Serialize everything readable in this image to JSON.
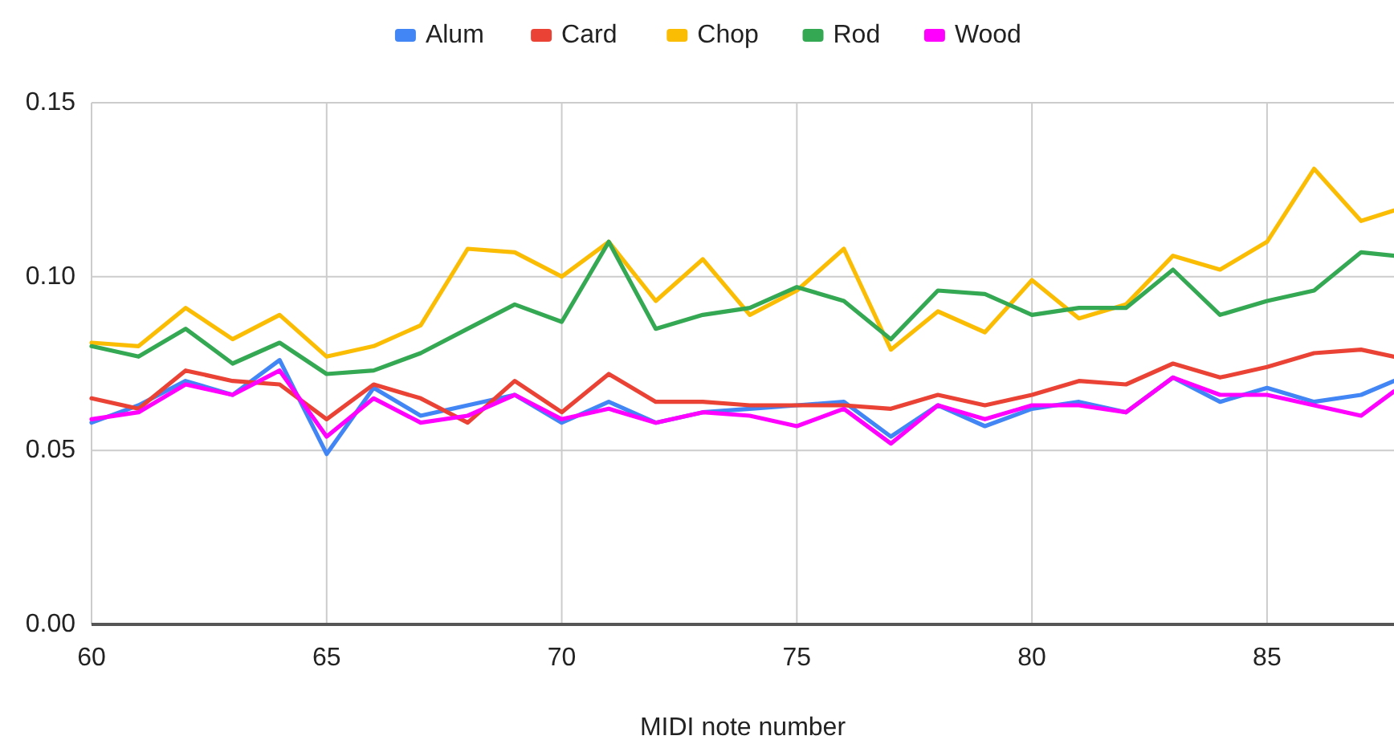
{
  "chart_data": {
    "type": "line",
    "xlabel": "MIDI note number",
    "x": [
      60,
      61,
      62,
      63,
      64,
      65,
      66,
      67,
      68,
      69,
      70,
      71,
      72,
      73,
      74,
      75,
      76,
      77,
      78,
      79,
      80,
      81,
      82,
      83,
      84,
      85,
      86,
      87,
      87.7
    ],
    "series": [
      {
        "name": "Alum",
        "color": "#4285f4",
        "values": [
          0.058,
          0.063,
          0.07,
          0.066,
          0.076,
          0.049,
          0.068,
          0.06,
          0.063,
          0.066,
          0.058,
          0.064,
          0.058,
          0.061,
          0.062,
          0.063,
          0.064,
          0.054,
          0.063,
          0.057,
          0.062,
          0.064,
          0.061,
          0.071,
          0.064,
          0.068,
          0.064,
          0.066,
          0.07
        ]
      },
      {
        "name": "Card",
        "color": "#ea4335",
        "values": [
          0.065,
          0.062,
          0.073,
          0.07,
          0.069,
          0.059,
          0.069,
          0.065,
          0.058,
          0.07,
          0.061,
          0.072,
          0.064,
          0.064,
          0.063,
          0.063,
          0.063,
          0.062,
          0.066,
          0.063,
          0.066,
          0.07,
          0.069,
          0.075,
          0.071,
          0.074,
          0.078,
          0.079,
          0.077
        ]
      },
      {
        "name": "Chop",
        "color": "#fbbc04",
        "values": [
          0.081,
          0.08,
          0.091,
          0.082,
          0.089,
          0.077,
          0.08,
          0.086,
          0.108,
          0.107,
          0.1,
          0.11,
          0.093,
          0.105,
          0.089,
          0.096,
          0.108,
          0.079,
          0.09,
          0.084,
          0.099,
          0.088,
          0.092,
          0.106,
          0.102,
          0.11,
          0.131,
          0.116,
          0.119
        ]
      },
      {
        "name": "Rod",
        "color": "#34a853",
        "values": [
          0.08,
          0.077,
          0.085,
          0.075,
          0.081,
          0.072,
          0.073,
          0.078,
          0.085,
          0.092,
          0.087,
          0.11,
          0.085,
          0.089,
          0.091,
          0.097,
          0.093,
          0.082,
          0.096,
          0.095,
          0.089,
          0.091,
          0.091,
          0.102,
          0.089,
          0.093,
          0.096,
          0.107,
          0.106
        ]
      },
      {
        "name": "Wood",
        "color": "#ff00ff",
        "values": [
          0.059,
          0.061,
          0.069,
          0.066,
          0.073,
          0.054,
          0.065,
          0.058,
          0.06,
          0.066,
          0.059,
          0.062,
          0.058,
          0.061,
          0.06,
          0.057,
          0.062,
          0.052,
          0.063,
          0.059,
          0.063,
          0.063,
          0.061,
          0.071,
          0.066,
          0.066,
          0.063,
          0.06,
          0.067
        ]
      }
    ],
    "xlim": [
      60,
      87.7
    ],
    "xticks": [
      60,
      65,
      70,
      75,
      80,
      85
    ],
    "ylim": [
      0,
      0.15
    ],
    "yticks": [
      {
        "value": 0,
        "label": "0.00"
      },
      0.05,
      {
        "value": 0.1,
        "label": "0.10"
      },
      0.15
    ],
    "grid": true,
    "legend": "top"
  }
}
